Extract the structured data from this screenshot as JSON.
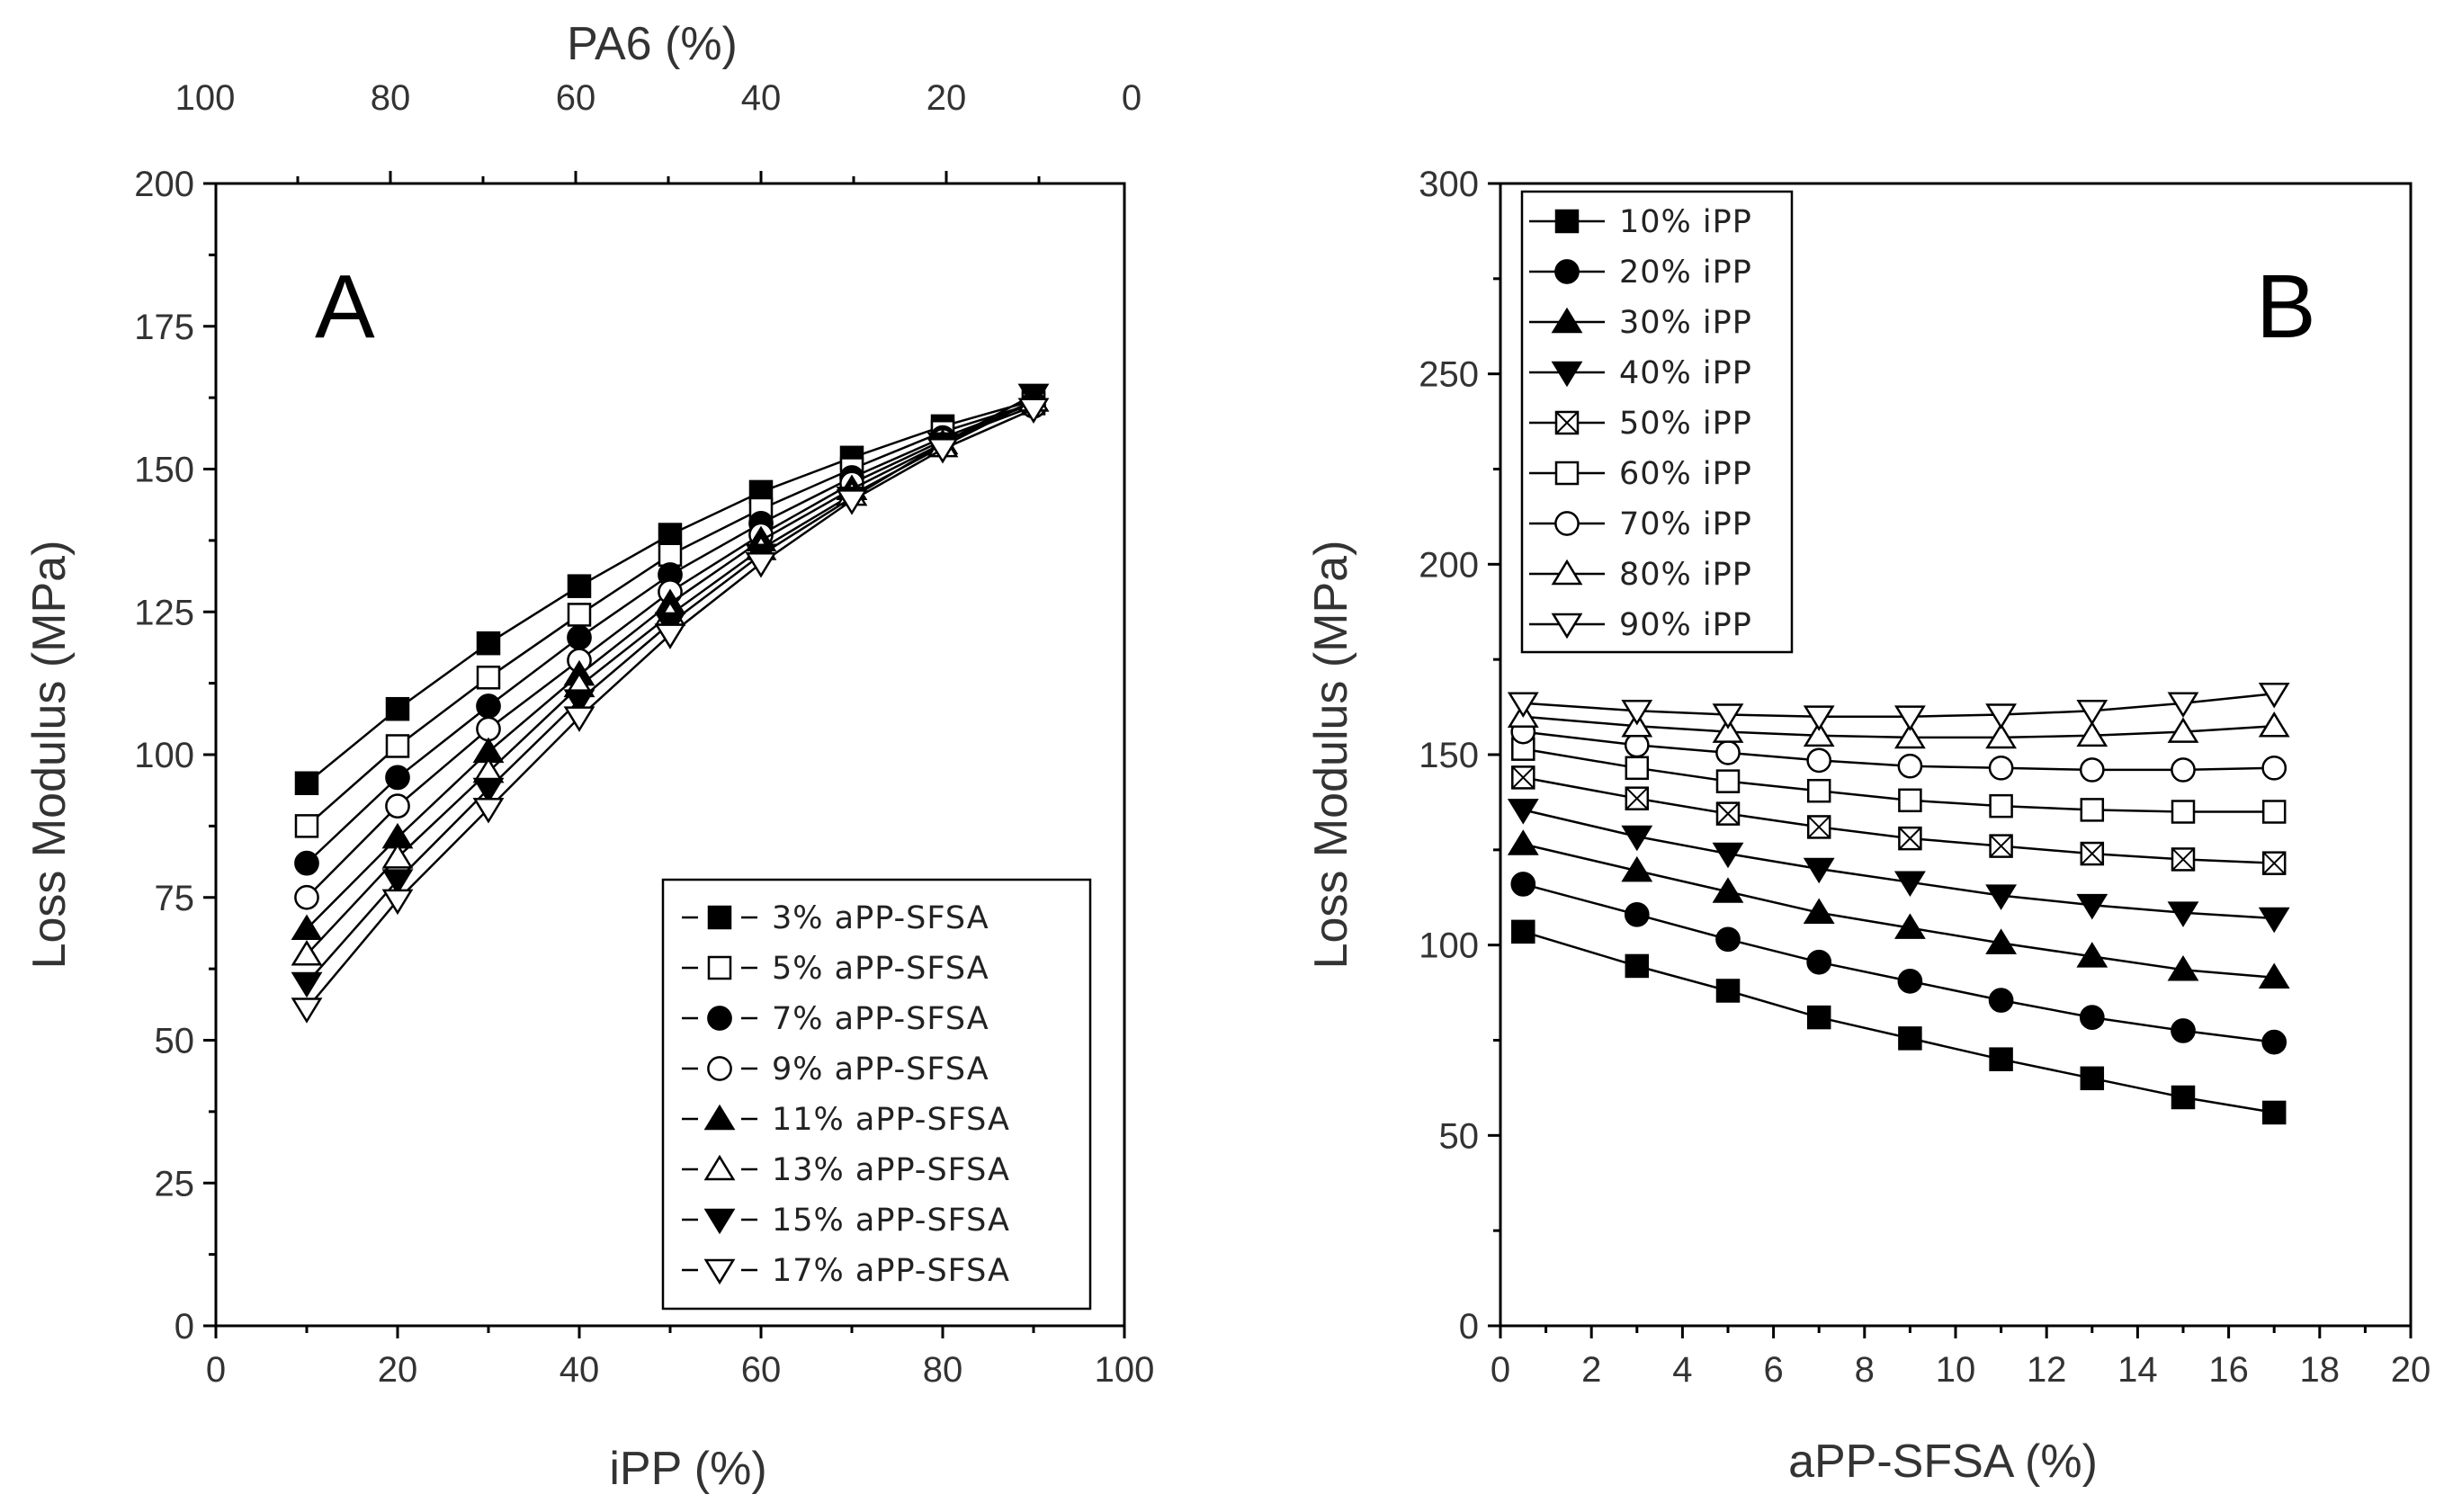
{
  "chart_data": [
    {
      "panel": "A",
      "type": "line",
      "panel_label": "A",
      "xlabel": "iPP (%)",
      "top_xlabel": "PA6 (%)",
      "ylabel": "Loss Modulus (MPa)",
      "xlim": [
        0,
        100
      ],
      "ylim": [
        0,
        200
      ],
      "x_ticks": [
        0,
        20,
        40,
        60,
        80,
        100
      ],
      "top_x_ticks": [
        100,
        80,
        60,
        40,
        20,
        0
      ],
      "y_ticks": [
        0,
        25,
        50,
        75,
        100,
        125,
        150,
        175,
        200
      ],
      "legend_position": "bottom-right",
      "x": [
        10,
        20,
        30,
        40,
        50,
        60,
        70,
        80,
        90
      ],
      "series": [
        {
          "name": "3% aPP-SFSA",
          "marker": "square",
          "filled": true,
          "values": [
            95,
            108,
            119.5,
            129.5,
            138.5,
            146,
            152,
            157.5,
            162
          ]
        },
        {
          "name": "5% aPP-SFSA",
          "marker": "square",
          "filled": false,
          "values": [
            87.5,
            101.5,
            113.5,
            124.5,
            135,
            143,
            150,
            156.5,
            161.5
          ]
        },
        {
          "name": "7% aPP-SFSA",
          "marker": "circle",
          "filled": true,
          "values": [
            81,
            96,
            108.5,
            120.5,
            131.5,
            140.5,
            148.5,
            155.5,
            161.5
          ]
        },
        {
          "name": "9% aPP-SFSA",
          "marker": "circle",
          "filled": false,
          "values": [
            75,
            91,
            104.5,
            116.5,
            128.5,
            138.5,
            147.5,
            155,
            161
          ]
        },
        {
          "name": "11% aPP-SFSA",
          "marker": "triangle-up",
          "filled": true,
          "values": [
            69.5,
            85.5,
            100.5,
            114,
            126.5,
            137.5,
            146.5,
            154.5,
            162
          ]
        },
        {
          "name": "13% aPP-SFSA",
          "marker": "triangle-up",
          "filled": false,
          "values": [
            65,
            82,
            97,
            112,
            124.5,
            136,
            145.5,
            154,
            162
          ]
        },
        {
          "name": "15% aPP-SFSA",
          "marker": "triangle-down",
          "filled": true,
          "values": [
            60,
            78,
            94,
            109.5,
            123,
            135,
            145,
            154.5,
            163
          ]
        },
        {
          "name": "17% aPP-SFSA",
          "marker": "triangle-down",
          "filled": false,
          "values": [
            55.5,
            74.5,
            90.5,
            106.5,
            121,
            133.5,
            144.5,
            153.5,
            160.5
          ]
        }
      ]
    },
    {
      "panel": "B",
      "type": "line",
      "panel_label": "B",
      "xlabel": "aPP-SFSA (%)",
      "ylabel": "Loss Modulus (MPa)",
      "xlim": [
        0,
        20
      ],
      "ylim": [
        0,
        300
      ],
      "x_ticks": [
        0,
        2,
        4,
        6,
        8,
        10,
        12,
        14,
        16,
        18,
        20
      ],
      "y_ticks": [
        0,
        50,
        100,
        150,
        200,
        250,
        300
      ],
      "legend_position": "top-left",
      "x": [
        0.5,
        3,
        5,
        7,
        9,
        11,
        13,
        15,
        17
      ],
      "series": [
        {
          "name": "10% iPP",
          "marker": "square",
          "filled": true,
          "values": [
            103.5,
            94.5,
            88,
            81,
            75.5,
            70,
            65,
            60,
            56
          ]
        },
        {
          "name": "20% iPP",
          "marker": "circle",
          "filled": true,
          "values": [
            116,
            108,
            101.5,
            95.5,
            90.5,
            85.5,
            81,
            77.5,
            74.5
          ]
        },
        {
          "name": "30% iPP",
          "marker": "triangle-up",
          "filled": true,
          "values": [
            126.5,
            119.5,
            114,
            108.5,
            104.5,
            100.5,
            97,
            93.5,
            91.5
          ]
        },
        {
          "name": "40% iPP",
          "marker": "triangle-down",
          "filled": true,
          "values": [
            135.5,
            128.5,
            124,
            120,
            116.5,
            113,
            110.5,
            108.5,
            107
          ]
        },
        {
          "name": "50% iPP",
          "marker": "square-cross",
          "filled": false,
          "values": [
            144,
            138.5,
            134.5,
            131,
            128,
            126,
            124,
            122.5,
            121.5
          ]
        },
        {
          "name": "60% iPP",
          "marker": "square",
          "filled": false,
          "values": [
            151.5,
            146.5,
            143,
            140.5,
            138,
            136.5,
            135.5,
            135,
            135
          ]
        },
        {
          "name": "70% iPP",
          "marker": "circle",
          "filled": false,
          "values": [
            156,
            152.5,
            150.5,
            148.5,
            147,
            146.5,
            146,
            146,
            146.5
          ]
        },
        {
          "name": "80% iPP",
          "marker": "triangle-up",
          "filled": false,
          "values": [
            160,
            157.5,
            156,
            155,
            154.5,
            154.5,
            155,
            156,
            157.5
          ]
        },
        {
          "name": "90% iPP",
          "marker": "triangle-down",
          "filled": false,
          "values": [
            163.5,
            161.5,
            160.5,
            160,
            160,
            160.5,
            161.5,
            163.5,
            166
          ]
        }
      ]
    }
  ]
}
